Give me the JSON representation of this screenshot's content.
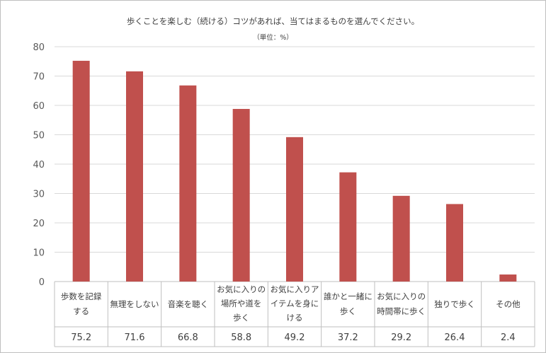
{
  "chart_data": {
    "type": "bar",
    "title": "歩くことを楽しむ（続ける）コツがあれば、当てはまるものを選んでください。",
    "subtitle": "（単位：%）",
    "categories": [
      [
        "歩数を記録",
        "する"
      ],
      [
        "無理をしない"
      ],
      [
        "音楽を聴く"
      ],
      [
        "お気に入りの",
        "場所や道を",
        "歩く"
      ],
      [
        "お気に入りア",
        "イテムを身に",
        "ける"
      ],
      [
        "誰かと一緒に",
        "歩く"
      ],
      [
        "お気に入りの",
        "時間帯に歩く"
      ],
      [
        "独りで歩く"
      ],
      [
        "その他"
      ]
    ],
    "values": [
      75.2,
      71.6,
      66.8,
      58.8,
      49.2,
      37.2,
      29.2,
      26.4,
      2.4
    ],
    "value_labels": [
      "75.2",
      "71.6",
      "66.8",
      "58.8",
      "49.2",
      "37.2",
      "29.2",
      "26.4",
      "2.4"
    ],
    "ylim": [
      0,
      80
    ],
    "yticks": [
      "0",
      "10",
      "20",
      "30",
      "40",
      "50",
      "60",
      "70",
      "80"
    ],
    "grid": true,
    "bar_color": "#c0504d",
    "grid_color": "#d9d9d9"
  }
}
